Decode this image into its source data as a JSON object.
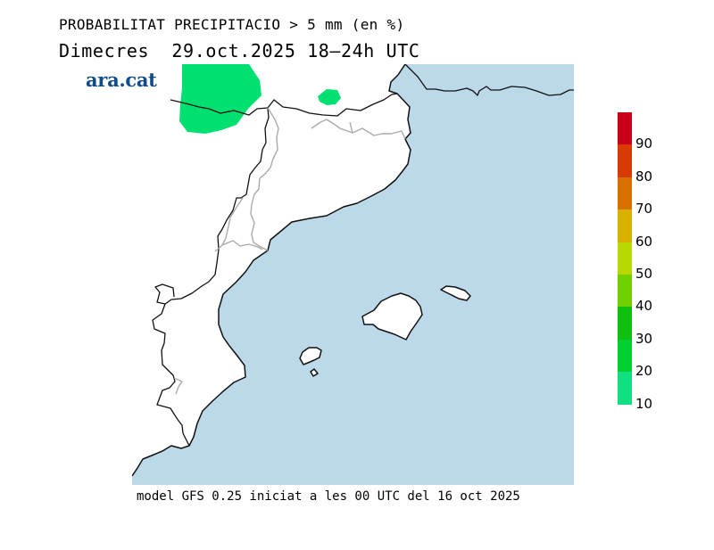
{
  "header": {
    "title": "PROBABILITAT PRECIPITACIO > 5 mm (en %)",
    "subtitle": "Dimecres  29.oct.2025 18—24h UTC"
  },
  "logo": {
    "text": "ara.cat",
    "color": "#0f4c8c"
  },
  "footer": {
    "text": "model GFS 0.25 iniciat a les 00 UTC del 16 oct 2025"
  },
  "map": {
    "sea_color": "#bcd9ea",
    "land_color": "#ffffff",
    "coast_color": "#111111",
    "border_color": "#aaaaaa",
    "precip_color": "#00e070"
  },
  "legend": {
    "labels": [
      "90",
      "80",
      "70",
      "60",
      "50",
      "40",
      "30",
      "20",
      "10"
    ],
    "colors": [
      "#c8001a",
      "#d83a05",
      "#d87000",
      "#d8b000",
      "#b8d800",
      "#70d000",
      "#10c010",
      "#00d030",
      "#10e080"
    ]
  }
}
